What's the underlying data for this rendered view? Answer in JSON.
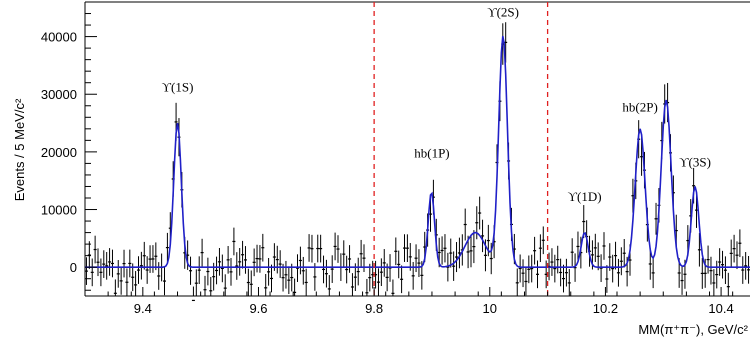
{
  "chart_data": {
    "type": "line",
    "title": "",
    "xlabel": "MM(π⁺π⁻), GeV/c²",
    "ylabel": "Events / 5 MeV/c²",
    "xlim": [
      9.3,
      10.45
    ],
    "ylim": [
      -5000,
      46000
    ],
    "x_ticks": [
      "9.4",
      "9.6",
      "9.8",
      "10",
      "10.2",
      "10.4"
    ],
    "x_tick_values": [
      9.4,
      9.6,
      9.8,
      10.0,
      10.2,
      10.4
    ],
    "y_ticks": [
      "0",
      "10000",
      "20000",
      "30000",
      "40000"
    ],
    "y_tick_values": [
      0,
      10000,
      20000,
      30000,
      40000
    ],
    "grid": false,
    "colors": {
      "fit": "#2020c8",
      "data": "#000000",
      "signal_region": "#e02020"
    },
    "vertical_lines": [
      9.8,
      10.1
    ],
    "annotations": [
      {
        "text": "ϒ(1S)",
        "x": 9.46,
        "y": 30500
      },
      {
        "text": "hb(1P)",
        "x": 9.9,
        "y": 19000
      },
      {
        "text": "ϒ(2S)",
        "x": 10.023,
        "y": 43500
      },
      {
        "text": "ϒ(1D)",
        "x": 10.164,
        "y": 11500
      },
      {
        "text": "hb(2P)",
        "x": 10.26,
        "y": 27000
      },
      {
        "text": "ϒ(3S)",
        "x": 10.355,
        "y": 17500
      }
    ],
    "peaks": [
      {
        "center": 9.46,
        "height": 25000,
        "width": 0.0065
      },
      {
        "center": 9.899,
        "height": 13000,
        "width": 0.0055
      },
      {
        "center": 9.975,
        "height": 6000,
        "width": 0.018
      },
      {
        "center": 10.023,
        "height": 40000,
        "width": 0.0075
      },
      {
        "center": 10.164,
        "height": 6000,
        "width": 0.006
      },
      {
        "center": 10.26,
        "height": 24000,
        "width": 0.0085
      },
      {
        "center": 10.305,
        "height": 29000,
        "width": 0.0085
      },
      {
        "center": 10.355,
        "height": 14000,
        "width": 0.0065
      }
    ],
    "series": [
      {
        "kind": "fit-curve",
        "x_start": 9.3,
        "x_end": 10.45,
        "x_step": 0.0025
      },
      {
        "kind": "data-points",
        "x_start": 9.3025,
        "x_end": 10.45,
        "x_step": 0.005,
        "noise": 2200,
        "error": 2400
      }
    ]
  }
}
